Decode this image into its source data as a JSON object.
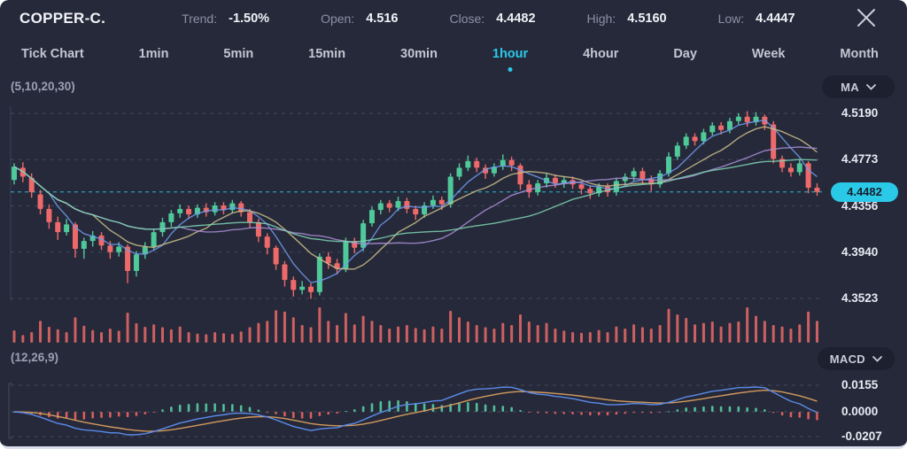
{
  "header": {
    "symbol": "COPPER-C.",
    "stats": [
      {
        "label": "Trend:",
        "value": "-1.50%"
      },
      {
        "label": "Open:",
        "value": "4.516"
      },
      {
        "label": "Close:",
        "value": "4.4482"
      },
      {
        "label": "High:",
        "value": "4.5160"
      },
      {
        "label": "Low:",
        "value": "4.4447"
      }
    ]
  },
  "tabs": {
    "items": [
      {
        "label": "Tick Chart"
      },
      {
        "label": "1min"
      },
      {
        "label": "5min"
      },
      {
        "label": "15min"
      },
      {
        "label": "30min"
      },
      {
        "label": "1hour"
      },
      {
        "label": "4hour"
      },
      {
        "label": "Day"
      },
      {
        "label": "Week"
      },
      {
        "label": "Month"
      }
    ],
    "active_label": "1hour"
  },
  "ma_panel": {
    "params_label": "(5,10,20,30)",
    "dropdown_label": "MA"
  },
  "macd_panel": {
    "params_label": "(12,26,9)",
    "dropdown_label": "MACD",
    "ticks": [
      "0.0155",
      "0.0000",
      "-0.0207"
    ]
  },
  "price_axis": {
    "ticks": [
      "4.5190",
      "4.4773",
      "4.4356",
      "4.3940",
      "4.3523"
    ],
    "current_price_label": "4.4482"
  },
  "colors": {
    "background": "#262939",
    "accent_cyan": "#2bc9e8",
    "candle_up": "#4fc99a",
    "candle_down": "#ee6a6a",
    "volume_bar": "#e06666",
    "ma5": "#6f9bef",
    "ma10": "#cdc08d",
    "ma20": "#a98fd8",
    "ma30": "#7fd4b4",
    "macd_line": "#5b8bea",
    "macd_signal": "#d29a5d",
    "macd_hist_up": "#53c79b",
    "macd_hist_down": "#e2605f",
    "grid": "#4b5168",
    "axis": "#3c415a"
  },
  "chart_data": {
    "type": "candlestick",
    "symbol": "COPPER-C.",
    "timeframe": "1hour",
    "ohlc_summary": {
      "open": 4.516,
      "close": 4.4482,
      "high": 4.516,
      "low": 4.4447,
      "trend_pct": -1.5
    },
    "price_ticks": [
      4.519,
      4.4773,
      4.4356,
      4.394,
      4.3523
    ],
    "current_price": 4.4482,
    "ma_periods": [
      5,
      10,
      20,
      30
    ],
    "macd_params": [
      12,
      26,
      9
    ],
    "macd_ticks": [
      0.0155,
      0.0,
      -0.0207
    ],
    "candles": [
      [
        4.459,
        4.474,
        4.455,
        4.471
      ],
      [
        4.47,
        4.475,
        4.457,
        4.462
      ],
      [
        4.461,
        4.465,
        4.443,
        4.448
      ],
      [
        4.446,
        4.45,
        4.428,
        4.433
      ],
      [
        4.433,
        4.437,
        4.415,
        4.421
      ],
      [
        4.421,
        4.426,
        4.405,
        4.412
      ],
      [
        4.412,
        4.424,
        4.409,
        4.419
      ],
      [
        4.419,
        4.421,
        4.389,
        4.397
      ],
      [
        4.397,
        4.407,
        4.388,
        4.404
      ],
      [
        4.404,
        4.413,
        4.399,
        4.409
      ],
      [
        4.409,
        4.412,
        4.396,
        4.4
      ],
      [
        4.4,
        4.404,
        4.388,
        4.394
      ],
      [
        4.394,
        4.403,
        4.39,
        4.399
      ],
      [
        4.399,
        4.401,
        4.366,
        4.377
      ],
      [
        4.377,
        4.395,
        4.372,
        4.392
      ],
      [
        4.392,
        4.403,
        4.388,
        4.399
      ],
      [
        4.399,
        4.415,
        4.396,
        4.412
      ],
      [
        4.412,
        4.425,
        4.408,
        4.421
      ],
      [
        4.421,
        4.432,
        4.417,
        4.429
      ],
      [
        4.429,
        4.437,
        4.425,
        4.433
      ],
      [
        4.433,
        4.436,
        4.424,
        4.428
      ],
      [
        4.428,
        4.437,
        4.425,
        4.434
      ],
      [
        4.434,
        4.438,
        4.426,
        4.43
      ],
      [
        4.43,
        4.439,
        4.427,
        4.436
      ],
      [
        4.436,
        4.439,
        4.428,
        4.432
      ],
      [
        4.432,
        4.441,
        4.429,
        4.438
      ],
      [
        4.438,
        4.44,
        4.426,
        4.43
      ],
      [
        4.43,
        4.433,
        4.416,
        4.421
      ],
      [
        4.421,
        4.424,
        4.403,
        4.408
      ],
      [
        4.408,
        4.411,
        4.392,
        4.398
      ],
      [
        4.398,
        4.4,
        4.378,
        4.383
      ],
      [
        4.383,
        4.386,
        4.363,
        4.369
      ],
      [
        4.369,
        4.372,
        4.354,
        4.36
      ],
      [
        4.36,
        4.368,
        4.356,
        4.363
      ],
      [
        4.363,
        4.366,
        4.352,
        4.358
      ],
      [
        4.358,
        4.393,
        4.355,
        4.39
      ],
      [
        4.39,
        4.394,
        4.379,
        4.384
      ],
      [
        4.384,
        4.388,
        4.374,
        4.379
      ],
      [
        4.379,
        4.407,
        4.376,
        4.404
      ],
      [
        4.404,
        4.407,
        4.393,
        4.398
      ],
      [
        4.398,
        4.423,
        4.395,
        4.42
      ],
      [
        4.42,
        4.435,
        4.417,
        4.432
      ],
      [
        4.432,
        4.441,
        4.428,
        4.438
      ],
      [
        4.438,
        4.441,
        4.43,
        4.434
      ],
      [
        4.434,
        4.444,
        4.431,
        4.44
      ],
      [
        4.44,
        4.443,
        4.429,
        4.433
      ],
      [
        4.433,
        4.436,
        4.423,
        4.428
      ],
      [
        4.428,
        4.439,
        4.425,
        4.436
      ],
      [
        4.436,
        4.445,
        4.433,
        4.441
      ],
      [
        4.441,
        4.444,
        4.432,
        4.437
      ],
      [
        4.437,
        4.465,
        4.434,
        4.462
      ],
      [
        4.462,
        4.474,
        4.459,
        4.47
      ],
      [
        4.47,
        4.481,
        4.467,
        4.476
      ],
      [
        4.476,
        4.479,
        4.466,
        4.47
      ],
      [
        4.47,
        4.473,
        4.46,
        4.465
      ],
      [
        4.465,
        4.474,
        4.462,
        4.471
      ],
      [
        4.471,
        4.482,
        4.468,
        4.477
      ],
      [
        4.477,
        4.48,
        4.467,
        4.472
      ],
      [
        4.472,
        4.474,
        4.45,
        4.455
      ],
      [
        4.455,
        4.459,
        4.443,
        4.448
      ],
      [
        4.448,
        4.459,
        4.445,
        4.456
      ],
      [
        4.456,
        4.465,
        4.452,
        4.461
      ],
      [
        4.461,
        4.464,
        4.452,
        4.456
      ],
      [
        4.456,
        4.462,
        4.452,
        4.459
      ],
      [
        4.459,
        4.462,
        4.451,
        4.455
      ],
      [
        4.455,
        4.458,
        4.446,
        4.451
      ],
      [
        4.451,
        4.454,
        4.442,
        4.447
      ],
      [
        4.447,
        4.456,
        4.444,
        4.453
      ],
      [
        4.453,
        4.456,
        4.444,
        4.448
      ],
      [
        4.448,
        4.461,
        4.445,
        4.458
      ],
      [
        4.458,
        4.465,
        4.454,
        4.462
      ],
      [
        4.462,
        4.47,
        4.458,
        4.467
      ],
      [
        4.467,
        4.47,
        4.456,
        4.46
      ],
      [
        4.46,
        4.463,
        4.449,
        4.455
      ],
      [
        4.455,
        4.468,
        4.452,
        4.465
      ],
      [
        4.465,
        4.484,
        4.462,
        4.48
      ],
      [
        4.48,
        4.493,
        4.477,
        4.49
      ],
      [
        4.49,
        4.501,
        4.487,
        4.498
      ],
      [
        4.498,
        4.501,
        4.49,
        4.494
      ],
      [
        4.494,
        4.505,
        4.491,
        4.502
      ],
      [
        4.502,
        4.511,
        4.499,
        4.508
      ],
      [
        4.508,
        4.511,
        4.5,
        4.504
      ],
      [
        4.504,
        4.515,
        4.501,
        4.512
      ],
      [
        4.512,
        4.519,
        4.509,
        4.516
      ],
      [
        4.516,
        4.521,
        4.507,
        4.511
      ],
      [
        4.511,
        4.52,
        4.508,
        4.516
      ],
      [
        4.516,
        4.518,
        4.504,
        4.509
      ],
      [
        4.509,
        4.512,
        4.474,
        4.478
      ],
      [
        4.478,
        4.481,
        4.466,
        4.47
      ],
      [
        4.47,
        4.474,
        4.462,
        4.466
      ],
      [
        4.466,
        4.477,
        4.463,
        4.474
      ],
      [
        4.474,
        4.476,
        4.447,
        4.452
      ],
      [
        4.452,
        4.456,
        4.4447,
        4.4482
      ]
    ],
    "volumes": [
      0.35,
      0.22,
      0.3,
      0.62,
      0.45,
      0.38,
      0.3,
      0.72,
      0.48,
      0.36,
      0.3,
      0.4,
      0.34,
      0.85,
      0.55,
      0.45,
      0.52,
      0.44,
      0.38,
      0.46,
      0.3,
      0.26,
      0.24,
      0.3,
      0.27,
      0.25,
      0.32,
      0.44,
      0.56,
      0.62,
      0.92,
      0.88,
      0.72,
      0.5,
      0.44,
      1.0,
      0.62,
      0.5,
      0.84,
      0.52,
      0.76,
      0.62,
      0.5,
      0.4,
      0.46,
      0.5,
      0.42,
      0.38,
      0.46,
      0.4,
      0.9,
      0.72,
      0.6,
      0.5,
      0.44,
      0.4,
      0.56,
      0.5,
      0.8,
      0.6,
      0.5,
      0.56,
      0.4,
      0.34,
      0.3,
      0.28,
      0.3,
      0.36,
      0.3,
      0.46,
      0.4,
      0.52,
      0.44,
      0.4,
      0.5,
      0.96,
      0.8,
      0.7,
      0.52,
      0.56,
      0.6,
      0.46,
      0.56,
      0.6,
      1.0,
      0.76,
      0.62,
      0.5,
      0.46,
      0.4,
      0.52,
      0.88,
      0.62
    ]
  }
}
